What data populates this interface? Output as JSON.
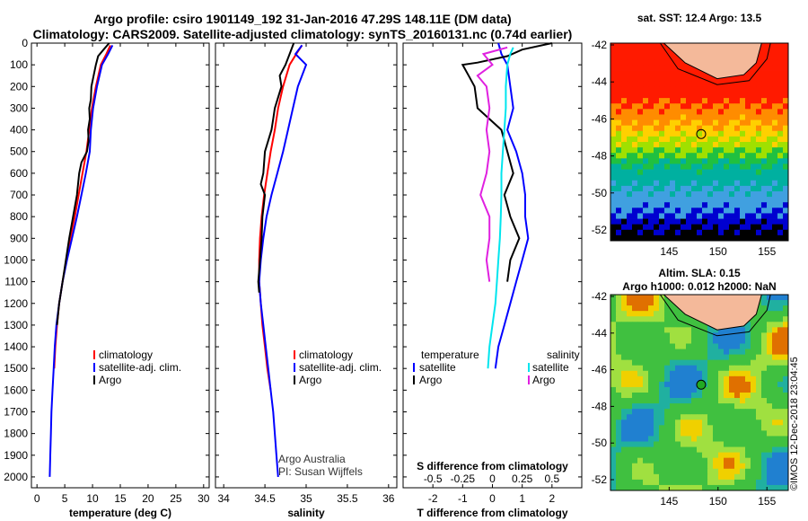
{
  "header": {
    "title_line1": "Argo profile: csiro 1901149_192 31-Jan-2016 47.29S 148.11E (DM data)",
    "title_line2": "Climatology: CARS2009. Satellite-adjusted climatology: synTS_20160131.nc (0.74d earlier)"
  },
  "colors": {
    "climatology": "#ff0000",
    "satellite": "#0000ff",
    "argo": "#000000",
    "salinity_satellite": "#00e5ee",
    "salinity_argo": "#e020e0"
  },
  "chart_data": [
    {
      "type": "line",
      "xlabel": "temperature (deg C)",
      "xlim": [
        -1,
        31
      ],
      "xticks": [
        "0",
        "5",
        "10",
        "15",
        "20",
        "25",
        "30"
      ],
      "ylim": [
        2050,
        0
      ],
      "yticks": [
        "0",
        "100",
        "200",
        "300",
        "400",
        "500",
        "600",
        "700",
        "800",
        "900",
        "1000",
        "1100",
        "1200",
        "1300",
        "1400",
        "1500",
        "1600",
        "1700",
        "1800",
        "1900",
        "2000"
      ],
      "legend": [
        "climatology",
        "satellite-adj. clim.",
        "Argo"
      ],
      "legend_location": "lower-right",
      "series": [
        {
          "name": "climatology",
          "color": "#ff0000",
          "points": [
            [
              13.2,
              10
            ],
            [
              12.5,
              50
            ],
            [
              11.5,
              100
            ],
            [
              10.6,
              200
            ],
            [
              9.9,
              300
            ],
            [
              9.4,
              400
            ],
            [
              8.9,
              500
            ],
            [
              8.2,
              600
            ],
            [
              7.5,
              700
            ],
            [
              6.8,
              800
            ],
            [
              6.0,
              900
            ],
            [
              5.3,
              1000
            ],
            [
              4.6,
              1100
            ],
            [
              4.0,
              1200
            ],
            [
              3.6,
              1300
            ],
            [
              3.3,
              1400
            ],
            [
              3.1,
              1500
            ]
          ]
        },
        {
          "name": "satellite-adj. clim.",
          "color": "#0000ff",
          "points": [
            [
              13.6,
              10
            ],
            [
              12.8,
              50
            ],
            [
              11.7,
              100
            ],
            [
              10.8,
              200
            ],
            [
              10.1,
              300
            ],
            [
              9.7,
              400
            ],
            [
              9.5,
              500
            ],
            [
              8.8,
              600
            ],
            [
              8.0,
              700
            ],
            [
              7.2,
              800
            ],
            [
              6.3,
              900
            ],
            [
              5.4,
              1000
            ],
            [
              4.6,
              1100
            ],
            [
              4.0,
              1200
            ],
            [
              3.5,
              1300
            ],
            [
              3.2,
              1400
            ],
            [
              3.0,
              1500
            ],
            [
              2.8,
              1600
            ],
            [
              2.6,
              1700
            ],
            [
              2.5,
              1800
            ],
            [
              2.4,
              1900
            ],
            [
              2.3,
              2000
            ]
          ]
        },
        {
          "name": "Argo",
          "color": "#000000",
          "points": [
            [
              13.0,
              0
            ],
            [
              12.0,
              30
            ],
            [
              11.0,
              60
            ],
            [
              10.6,
              100
            ],
            [
              10.2,
              150
            ],
            [
              9.8,
              200
            ],
            [
              9.7,
              260
            ],
            [
              9.4,
              300
            ],
            [
              9.5,
              350
            ],
            [
              9.2,
              400
            ],
            [
              9.3,
              450
            ],
            [
              9.0,
              500
            ],
            [
              8.0,
              550
            ],
            [
              7.6,
              600
            ],
            [
              7.2,
              700
            ],
            [
              6.5,
              800
            ],
            [
              5.8,
              900
            ],
            [
              5.2,
              1000
            ],
            [
              4.6,
              1100
            ],
            [
              4.0,
              1200
            ],
            [
              3.6,
              1300
            ]
          ]
        }
      ]
    },
    {
      "type": "line",
      "xlabel": "salinity",
      "xlim": [
        33.9,
        36.1
      ],
      "xticks": [
        "34",
        "34.5",
        "35",
        "35.5",
        "36"
      ],
      "ylim": [
        2050,
        0
      ],
      "legend": [
        "climatology",
        "satellite-adj. clim.",
        "Argo"
      ],
      "legend_location": "lower-right",
      "annotation": [
        "Argo Australia",
        "PI: Susan Wijffels"
      ],
      "series": [
        {
          "name": "climatology",
          "color": "#ff0000",
          "points": [
            [
              34.95,
              10
            ],
            [
              34.88,
              50
            ],
            [
              34.8,
              100
            ],
            [
              34.72,
              200
            ],
            [
              34.66,
              300
            ],
            [
              34.62,
              400
            ],
            [
              34.57,
              500
            ],
            [
              34.53,
              600
            ],
            [
              34.49,
              700
            ],
            [
              34.46,
              800
            ],
            [
              34.44,
              900
            ],
            [
              34.43,
              1000
            ],
            [
              34.43,
              1100
            ],
            [
              34.45,
              1200
            ],
            [
              34.47,
              1300
            ],
            [
              34.5,
              1400
            ],
            [
              34.53,
              1500
            ],
            [
              34.57,
              1600
            ]
          ]
        },
        {
          "name": "satellite-adj. clim.",
          "color": "#0000ff",
          "points": [
            [
              34.95,
              10
            ],
            [
              34.87,
              50
            ],
            [
              35.0,
              100
            ],
            [
              34.9,
              200
            ],
            [
              34.84,
              300
            ],
            [
              34.78,
              400
            ],
            [
              34.72,
              500
            ],
            [
              34.65,
              600
            ],
            [
              34.58,
              700
            ],
            [
              34.52,
              800
            ],
            [
              34.48,
              900
            ],
            [
              34.45,
              1000
            ],
            [
              34.43,
              1100
            ],
            [
              34.45,
              1200
            ],
            [
              34.48,
              1300
            ],
            [
              34.51,
              1400
            ],
            [
              34.54,
              1500
            ],
            [
              34.57,
              1600
            ],
            [
              34.6,
              1700
            ],
            [
              34.62,
              1800
            ],
            [
              34.64,
              1900
            ],
            [
              34.66,
              2000
            ]
          ]
        },
        {
          "name": "Argo",
          "color": "#000000",
          "points": [
            [
              34.85,
              0
            ],
            [
              34.8,
              50
            ],
            [
              34.75,
              100
            ],
            [
              34.68,
              150
            ],
            [
              34.7,
              200
            ],
            [
              34.62,
              300
            ],
            [
              34.6,
              350
            ],
            [
              34.58,
              400
            ],
            [
              34.5,
              500
            ],
            [
              34.48,
              600
            ],
            [
              34.45,
              650
            ],
            [
              34.5,
              700
            ],
            [
              34.47,
              800
            ],
            [
              34.46,
              900
            ],
            [
              34.44,
              1000
            ],
            [
              34.42,
              1100
            ],
            [
              34.43,
              1150
            ]
          ]
        }
      ]
    },
    {
      "type": "line",
      "xlabel": "T difference from climatology",
      "xlim": [
        -3,
        3
      ],
      "xticks": [
        "-2",
        "-1",
        "0",
        "1",
        "2"
      ],
      "secondary_xlabel": "S difference from climatology",
      "secondary_xticks": [
        "-0.5",
        "-0.25",
        "0",
        "0.25",
        "0.5"
      ],
      "ylim": [
        2050,
        0
      ],
      "legend_temperature": {
        "heading": "temperature",
        "items": [
          "satellite",
          "Argo"
        ]
      },
      "legend_salinity": {
        "heading": "salinity",
        "items": [
          "satellite",
          "Argo"
        ]
      },
      "series": [
        {
          "name": "satellite",
          "color": "#0000ff",
          "points": [
            [
              0.2,
              0
            ],
            [
              0.3,
              50
            ],
            [
              0.5,
              100
            ],
            [
              0.6,
              200
            ],
            [
              0.7,
              300
            ],
            [
              0.6,
              350
            ],
            [
              0.5,
              400
            ],
            [
              0.8,
              500
            ],
            [
              1.0,
              600
            ],
            [
              1.1,
              700
            ],
            [
              1.1,
              800
            ],
            [
              1.2,
              900
            ],
            [
              1.0,
              1000
            ],
            [
              0.8,
              1100
            ],
            [
              0.6,
              1200
            ],
            [
              0.4,
              1300
            ],
            [
              0.2,
              1400
            ],
            [
              0.1,
              1500
            ]
          ]
        },
        {
          "name": "Argo",
          "color": "#000000",
          "points": [
            [
              2.0,
              0
            ],
            [
              1.0,
              30
            ],
            [
              0.5,
              60
            ],
            [
              -0.5,
              90
            ],
            [
              -1.0,
              100
            ],
            [
              -0.8,
              150
            ],
            [
              -0.6,
              200
            ],
            [
              -0.5,
              300
            ],
            [
              0.3,
              400
            ],
            [
              0.5,
              500
            ],
            [
              0.7,
              600
            ],
            [
              0.4,
              700
            ],
            [
              0.6,
              800
            ],
            [
              0.9,
              900
            ],
            [
              0.6,
              1000
            ],
            [
              0.5,
              1100
            ]
          ]
        },
        {
          "name": "satellite",
          "color": "#00e5ee",
          "points": [
            [
              0.7,
              20
            ],
            [
              0.6,
              50
            ],
            [
              0.5,
              100
            ],
            [
              0.45,
              200
            ],
            [
              0.45,
              300
            ],
            [
              0.4,
              400
            ],
            [
              0.35,
              500
            ],
            [
              0.3,
              600
            ],
            [
              0.3,
              700
            ],
            [
              0.28,
              800
            ],
            [
              0.25,
              900
            ],
            [
              0.2,
              1000
            ],
            [
              0.15,
              1100
            ],
            [
              0.1,
              1200
            ],
            [
              0.0,
              1300
            ],
            [
              -0.1,
              1400
            ],
            [
              -0.15,
              1500
            ]
          ]
        },
        {
          "name": "Argo",
          "color": "#e020e0",
          "points": [
            [
              0.5,
              20
            ],
            [
              -0.3,
              50
            ],
            [
              0.0,
              100
            ],
            [
              -0.5,
              150
            ],
            [
              -0.2,
              200
            ],
            [
              -0.1,
              300
            ],
            [
              -0.2,
              400
            ],
            [
              -0.1,
              500
            ],
            [
              -0.2,
              600
            ],
            [
              -0.4,
              700
            ],
            [
              -0.1,
              800
            ],
            [
              -0.1,
              900
            ],
            [
              -0.2,
              1000
            ],
            [
              -0.1,
              1100
            ]
          ]
        }
      ]
    }
  ],
  "maps": [
    {
      "title": "sat. SST: 12.4 Argo: 13.5",
      "subtitle": "",
      "type": "sst",
      "lat_ticks": [
        "-42",
        "-44",
        "-46",
        "-48",
        "-50",
        "-52"
      ],
      "lon_ticks": [
        "145",
        "150",
        "155"
      ],
      "marker_fill": "none"
    },
    {
      "title": "Altim. SLA: 0.15",
      "subtitle": "Argo h1000: 0.012 h2000: NaN",
      "type": "sla",
      "lat_ticks": [
        "-42",
        "-44",
        "-46",
        "-48",
        "-50",
        "-52"
      ],
      "lon_ticks": [
        "145",
        "150",
        "155"
      ],
      "marker_fill": "#22aa22"
    }
  ],
  "watermark": "©IMOS 12-Dec-2018 23:04:45"
}
